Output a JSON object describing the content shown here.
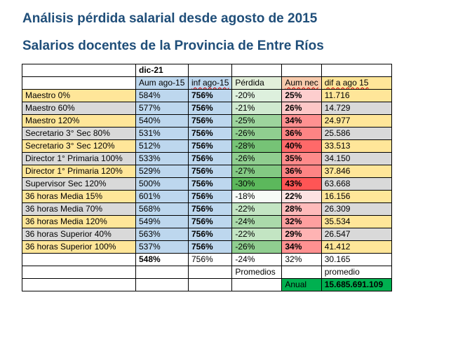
{
  "titles": {
    "main": "Análisis pérdida salarial desde agosto de 2015",
    "sub": "Salarios docentes de la Provincia de Entre Ríos"
  },
  "table": {
    "period": "dic-21",
    "headers": {
      "aum": "Aum ago-15",
      "inf": "inf ago-15",
      "perdida": "Pérdida",
      "aum_nec": "Aum nec",
      "dif": "dif a ago 15"
    },
    "rows": [
      {
        "name": "Maestro 0%",
        "aum": "584%",
        "inf": "756%",
        "perdida": "-20%",
        "aum_nec": "25%",
        "dif": "11.716",
        "loss": 20,
        "nec": 25,
        "band": "yellow"
      },
      {
        "name": "Maestro 60%",
        "aum": "577%",
        "inf": "756%",
        "perdida": "-21%",
        "aum_nec": "26%",
        "dif": "14.729",
        "loss": 21,
        "nec": 26,
        "band": "grey"
      },
      {
        "name": "Maestro 120%",
        "aum": "540%",
        "inf": "756%",
        "perdida": "-25%",
        "aum_nec": "34%",
        "dif": "24.977",
        "loss": 25,
        "nec": 34,
        "band": "yellow"
      },
      {
        "name": "Secretario 3° Sec 80%",
        "aum": "531%",
        "inf": "756%",
        "perdida": "-26%",
        "aum_nec": "36%",
        "dif": "25.586",
        "loss": 26,
        "nec": 36,
        "band": "grey"
      },
      {
        "name": "Secretario 3° Sec 120%",
        "aum": "512%",
        "inf": "756%",
        "perdida": "-28%",
        "aum_nec": "40%",
        "dif": "33.513",
        "loss": 28,
        "nec": 40,
        "band": "yellow"
      },
      {
        "name": "Director 1° Primaria 100%",
        "aum": "533%",
        "inf": "756%",
        "perdida": "-26%",
        "aum_nec": "35%",
        "dif": "34.150",
        "loss": 26,
        "nec": 35,
        "band": "grey"
      },
      {
        "name": "Director 1° Primaria 120%",
        "aum": "529%",
        "inf": "756%",
        "perdida": "-27%",
        "aum_nec": "36%",
        "dif": "37.846",
        "loss": 27,
        "nec": 36,
        "band": "yellow"
      },
      {
        "name": "Supervisor Sec 120%",
        "aum": "500%",
        "inf": "756%",
        "perdida": "-30%",
        "aum_nec": "43%",
        "dif": "63.668",
        "loss": 30,
        "nec": 43,
        "band": "grey"
      },
      {
        "name": "36 horas Media 15%",
        "aum": "601%",
        "inf": "756%",
        "perdida": "-18%",
        "aum_nec": "22%",
        "dif": "16.156",
        "loss": 18,
        "nec": 22,
        "band": "yellow"
      },
      {
        "name": "36 horas Media 70%",
        "aum": "568%",
        "inf": "756%",
        "perdida": "-22%",
        "aum_nec": "28%",
        "dif": "26.309",
        "loss": 22,
        "nec": 28,
        "band": "grey"
      },
      {
        "name": "36 horas Media 120%",
        "aum": "549%",
        "inf": "756%",
        "perdida": "-24%",
        "aum_nec": "32%",
        "dif": "35.534",
        "loss": 24,
        "nec": 32,
        "band": "yellow"
      },
      {
        "name": "36 horas Superior 40%",
        "aum": "563%",
        "inf": "756%",
        "perdida": "-22%",
        "aum_nec": "29%",
        "dif": "26.547",
        "loss": 22,
        "nec": 29,
        "band": "grey"
      },
      {
        "name": "36 horas Superior 100%",
        "aum": "537%",
        "inf": "756%",
        "perdida": "-26%",
        "aum_nec": "34%",
        "dif": "41.412",
        "loss": 26,
        "nec": 34,
        "band": "yellow"
      }
    ],
    "averages": {
      "aum": "548%",
      "inf": "756%",
      "perdida": "-24%",
      "aum_nec": "32%",
      "dif": "30.165"
    },
    "labels": {
      "promedios": "Promedios",
      "promedio": "promedio",
      "anual": "Anual"
    },
    "annual_total": "15.685.691.109",
    "colors": {
      "name_yellow": "#ffe699",
      "name_grey": "#d9d9d9",
      "blue": "#bdd7ee",
      "loss_light": "#f7fbf7",
      "loss_dark": "#5cb85c",
      "nec_light": "#fde2e2",
      "nec_dark": "#ff5555",
      "green_total": "#00b050"
    }
  }
}
